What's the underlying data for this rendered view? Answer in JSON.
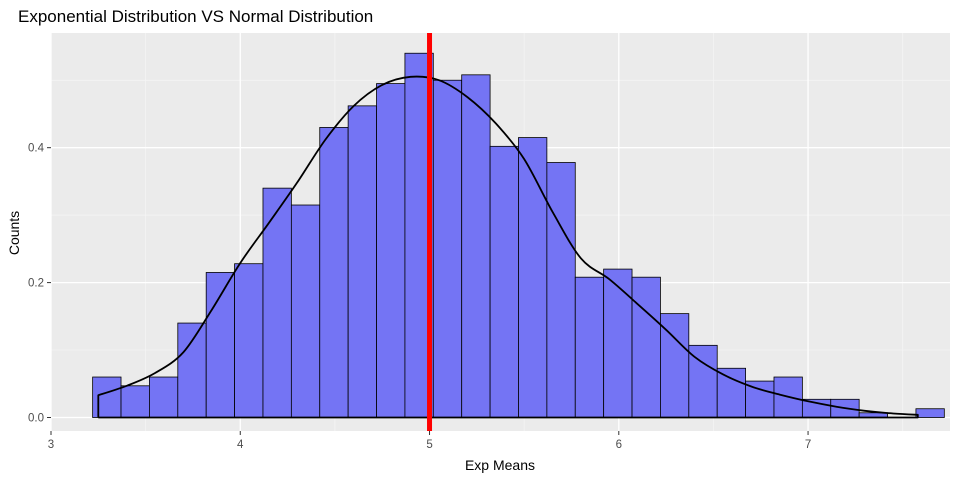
{
  "chart_data": {
    "type": "bar",
    "title": "Exponential Distribution VS Normal Distribution",
    "xlabel": "Exp Means",
    "ylabel": "Counts",
    "xlim": [
      3,
      7.75
    ],
    "ylim": [
      -0.02,
      0.57
    ],
    "x_ticks": [
      3,
      4,
      5,
      6,
      7
    ],
    "y_ticks": [
      0.0,
      0.2,
      0.4
    ],
    "y_tick_labels": [
      "0.0",
      "0.2",
      "0.4"
    ],
    "grid": true,
    "bin_width": 0.15,
    "bins": [
      {
        "x_start": 3.22,
        "y": 0.06
      },
      {
        "x_start": 3.37,
        "y": 0.047
      },
      {
        "x_start": 3.52,
        "y": 0.06
      },
      {
        "x_start": 3.67,
        "y": 0.14
      },
      {
        "x_start": 3.82,
        "y": 0.215
      },
      {
        "x_start": 3.97,
        "y": 0.228
      },
      {
        "x_start": 4.12,
        "y": 0.34
      },
      {
        "x_start": 4.27,
        "y": 0.315
      },
      {
        "x_start": 4.42,
        "y": 0.43
      },
      {
        "x_start": 4.57,
        "y": 0.462
      },
      {
        "x_start": 4.72,
        "y": 0.495
      },
      {
        "x_start": 4.87,
        "y": 0.54
      },
      {
        "x_start": 5.02,
        "y": 0.5
      },
      {
        "x_start": 5.17,
        "y": 0.508
      },
      {
        "x_start": 5.32,
        "y": 0.402
      },
      {
        "x_start": 5.47,
        "y": 0.415
      },
      {
        "x_start": 5.62,
        "y": 0.378
      },
      {
        "x_start": 5.77,
        "y": 0.208
      },
      {
        "x_start": 5.92,
        "y": 0.22
      },
      {
        "x_start": 6.07,
        "y": 0.208
      },
      {
        "x_start": 6.22,
        "y": 0.154
      },
      {
        "x_start": 6.37,
        "y": 0.107
      },
      {
        "x_start": 6.52,
        "y": 0.073
      },
      {
        "x_start": 6.67,
        "y": 0.054
      },
      {
        "x_start": 6.82,
        "y": 0.06
      },
      {
        "x_start": 6.97,
        "y": 0.027
      },
      {
        "x_start": 7.12,
        "y": 0.027
      },
      {
        "x_start": 7.27,
        "y": 0.007
      },
      {
        "x_start": 7.42,
        "y": 0.0
      },
      {
        "x_start": 7.57,
        "y": 0.013
      }
    ],
    "density_curve": [
      [
        3.25,
        0.0
      ],
      [
        3.25,
        0.033
      ],
      [
        3.4,
        0.047
      ],
      [
        3.55,
        0.066
      ],
      [
        3.7,
        0.097
      ],
      [
        3.85,
        0.16
      ],
      [
        4.0,
        0.229
      ],
      [
        4.15,
        0.288
      ],
      [
        4.3,
        0.348
      ],
      [
        4.45,
        0.412
      ],
      [
        4.6,
        0.462
      ],
      [
        4.75,
        0.493
      ],
      [
        4.9,
        0.505
      ],
      [
        5.05,
        0.5
      ],
      [
        5.2,
        0.475
      ],
      [
        5.35,
        0.436
      ],
      [
        5.5,
        0.383
      ],
      [
        5.65,
        0.305
      ],
      [
        5.8,
        0.236
      ],
      [
        5.95,
        0.205
      ],
      [
        6.1,
        0.168
      ],
      [
        6.25,
        0.13
      ],
      [
        6.4,
        0.09
      ],
      [
        6.55,
        0.064
      ],
      [
        6.7,
        0.046
      ],
      [
        6.85,
        0.034
      ],
      [
        7.0,
        0.024
      ],
      [
        7.15,
        0.016
      ],
      [
        7.3,
        0.01
      ],
      [
        7.45,
        0.006
      ],
      [
        7.58,
        0.004
      ],
      [
        7.58,
        0.0
      ]
    ],
    "vline_x": 5.0,
    "colors": {
      "bar_fill": "#7474f4",
      "bar_stroke": "#000000",
      "panel_bg": "#ebebeb",
      "grid_major": "#ffffff",
      "grid_minor": "#f5f5f5",
      "curve": "#000000",
      "vline": "#ff0000"
    }
  }
}
